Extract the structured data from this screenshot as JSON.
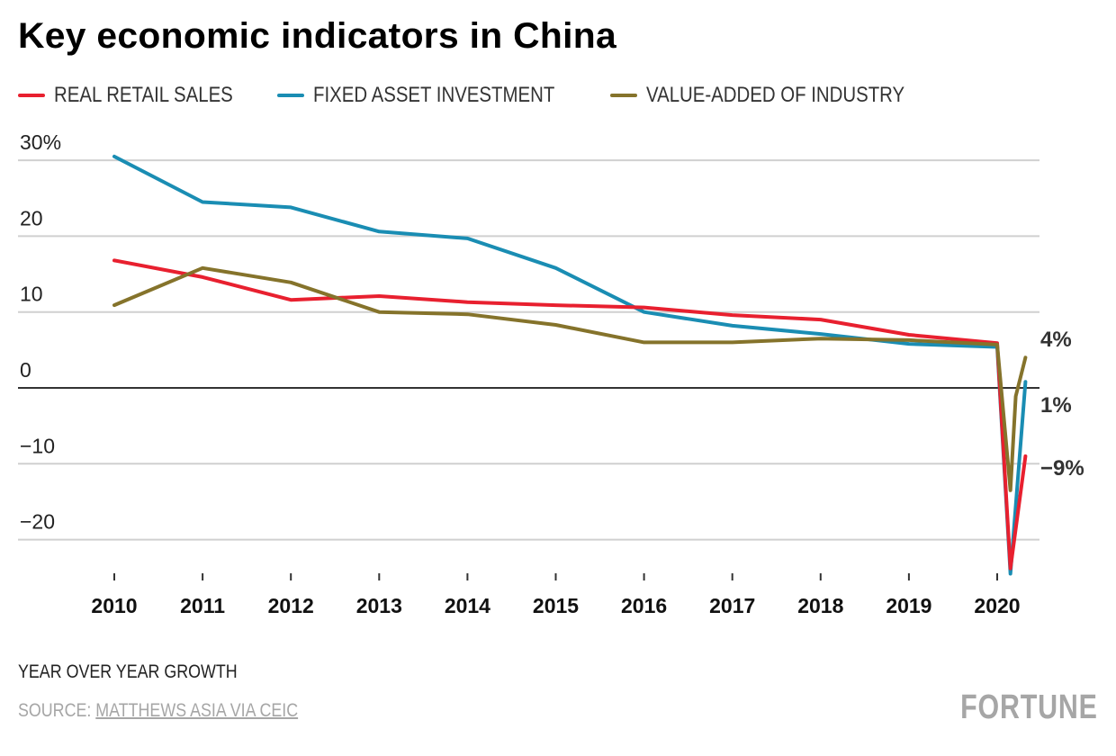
{
  "header": {
    "title": "Key economic indicators in China"
  },
  "legend": [
    {
      "label": "REAL RETAIL SALES",
      "color": "#e8202f"
    },
    {
      "label": "FIXED ASSET INVESTMENT",
      "color": "#1a8db3"
    },
    {
      "label": "VALUE-ADDED OF INDUSTRY",
      "color": "#85732b"
    }
  ],
  "footer": {
    "subtitle": "YEAR OVER YEAR GROWTH",
    "source_prefix": "SOURCE: ",
    "source_link": "MATTHEWS ASIA VIA CEIC",
    "brand": "FORTUNE"
  },
  "chart_data": {
    "type": "line",
    "title": "Key economic indicators in China",
    "xlabel": "",
    "ylabel": "Year over year growth (%)",
    "ylim": [
      -25,
      30
    ],
    "xlim": [
      2010,
      2020.33
    ],
    "y_ticks": [
      {
        "value": 30,
        "label": "30%"
      },
      {
        "value": 20,
        "label": "20"
      },
      {
        "value": 10,
        "label": "10"
      },
      {
        "value": 0,
        "label": "0"
      },
      {
        "value": -10,
        "label": "-10"
      },
      {
        "value": -20,
        "label": "-20"
      }
    ],
    "x_ticks": [
      {
        "value": 2010,
        "label": "2010"
      },
      {
        "value": 2011,
        "label": "2011"
      },
      {
        "value": 2012,
        "label": "2012"
      },
      {
        "value": 2013,
        "label": "2013"
      },
      {
        "value": 2014,
        "label": "2014"
      },
      {
        "value": 2015,
        "label": "2015"
      },
      {
        "value": 2016,
        "label": "2016"
      },
      {
        "value": 2017,
        "label": "2017"
      },
      {
        "value": 2018,
        "label": "2018"
      },
      {
        "value": 2019,
        "label": "2019"
      },
      {
        "value": 2020,
        "label": "2020"
      }
    ],
    "grid": true,
    "legend_position": "top-left",
    "series": [
      {
        "name": "REAL RETAIL SALES",
        "color": "#e8202f",
        "x": [
          2010,
          2011,
          2012,
          2013,
          2014,
          2015,
          2016,
          2017,
          2018,
          2019,
          2020,
          2020.15,
          2020.32
        ],
        "values": [
          16.8,
          14.6,
          11.6,
          12.1,
          11.3,
          10.9,
          10.6,
          9.6,
          9.0,
          7.0,
          5.9,
          -23.8,
          -9.0
        ],
        "end_label": "−9%"
      },
      {
        "name": "FIXED ASSET INVESTMENT",
        "color": "#1a8db3",
        "x": [
          2010,
          2011,
          2012,
          2013,
          2014,
          2015,
          2016,
          2017,
          2018,
          2019,
          2020,
          2020.15,
          2020.32
        ],
        "values": [
          30.5,
          24.5,
          23.8,
          20.6,
          19.7,
          15.8,
          10.0,
          8.2,
          7.1,
          5.8,
          5.4,
          -24.5,
          0.8
        ],
        "end_label": "1%"
      },
      {
        "name": "VALUE-ADDED OF INDUSTRY",
        "color": "#85732b",
        "x": [
          2010,
          2011,
          2012,
          2013,
          2014,
          2015,
          2016,
          2017,
          2018,
          2019,
          2020,
          2020.15,
          2020.21,
          2020.32
        ],
        "values": [
          10.9,
          15.8,
          13.9,
          10.0,
          9.7,
          8.3,
          6.0,
          6.0,
          6.5,
          6.3,
          5.7,
          -13.5,
          -1.1,
          4.0
        ],
        "end_label": "4%"
      }
    ]
  }
}
